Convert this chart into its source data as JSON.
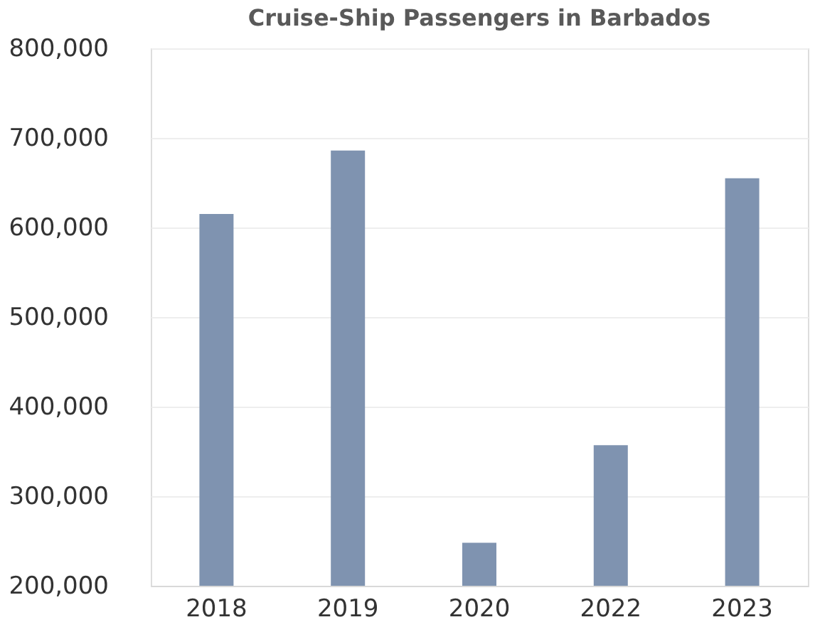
{
  "chart_data": {
    "type": "bar",
    "title": "Cruise-Ship Passengers in Barbados",
    "categories": [
      "2018",
      "2019",
      "2020",
      "2022",
      "2023"
    ],
    "values": [
      615000,
      686000,
      248000,
      357000,
      655000
    ],
    "color": "#7f93b0",
    "ylim": [
      200000,
      800000
    ],
    "yticks": [
      {
        "value": 200000,
        "label": "200,000"
      },
      {
        "value": 300000,
        "label": "300,000"
      },
      {
        "value": 400000,
        "label": "400,000"
      },
      {
        "value": 500000,
        "label": "500,000"
      },
      {
        "value": 600000,
        "label": "600,000"
      },
      {
        "value": 700000,
        "label": "700,000"
      },
      {
        "value": 800000,
        "label": "800,000"
      }
    ],
    "grid": "y"
  }
}
